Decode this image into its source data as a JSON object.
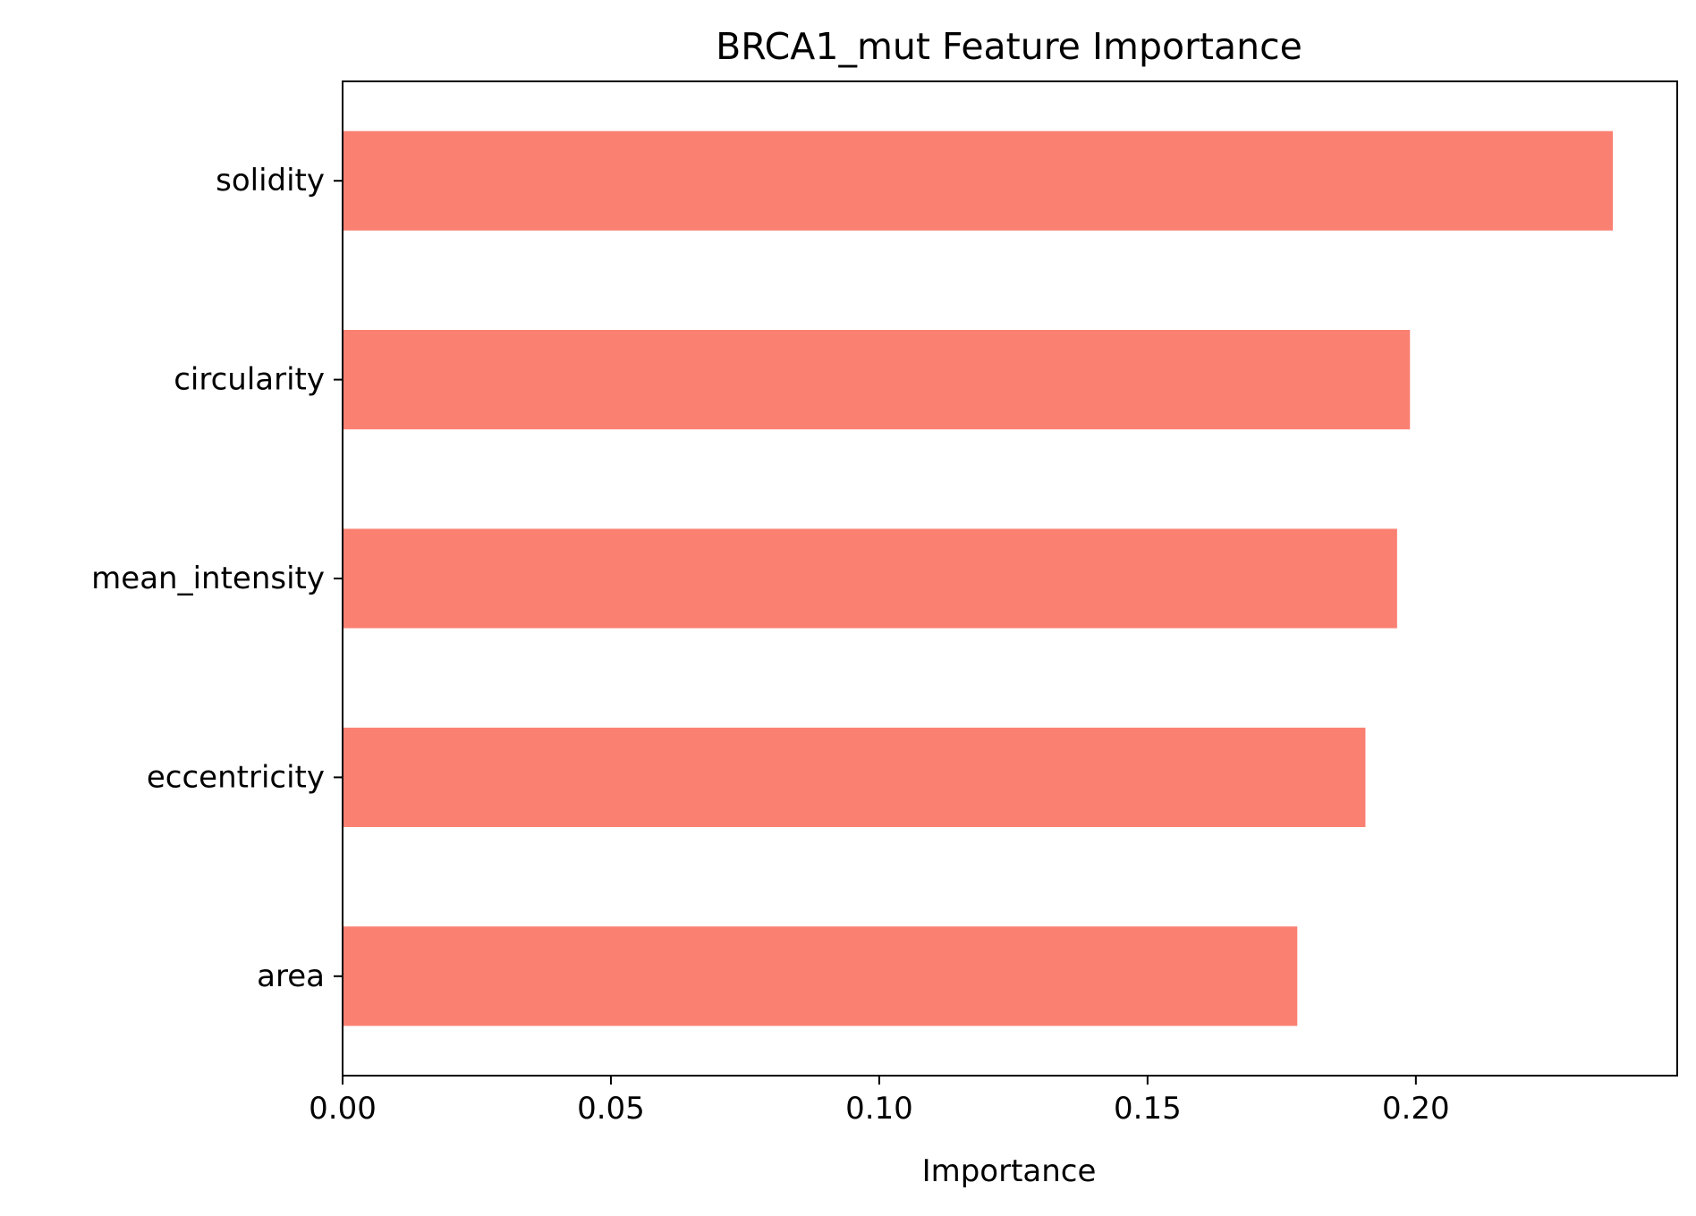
{
  "chart_data": {
    "type": "bar",
    "orientation": "horizontal",
    "title": "BRCA1_mut Feature Importance",
    "xlabel": "Importance",
    "ylabel": "",
    "categories": [
      "solidity",
      "circularity",
      "mean_intensity",
      "eccentricity",
      "area"
    ],
    "values": [
      0.2367,
      0.1989,
      0.1965,
      0.1906,
      0.1779
    ],
    "xlim": [
      0,
      0.2487
    ],
    "xticks": [
      0.0,
      0.05,
      0.1,
      0.15,
      0.2
    ],
    "xtick_labels": [
      "0.00",
      "0.05",
      "0.10",
      "0.15",
      "0.20"
    ],
    "bar_color": "#fa8072",
    "grid": false,
    "legend": "none"
  }
}
